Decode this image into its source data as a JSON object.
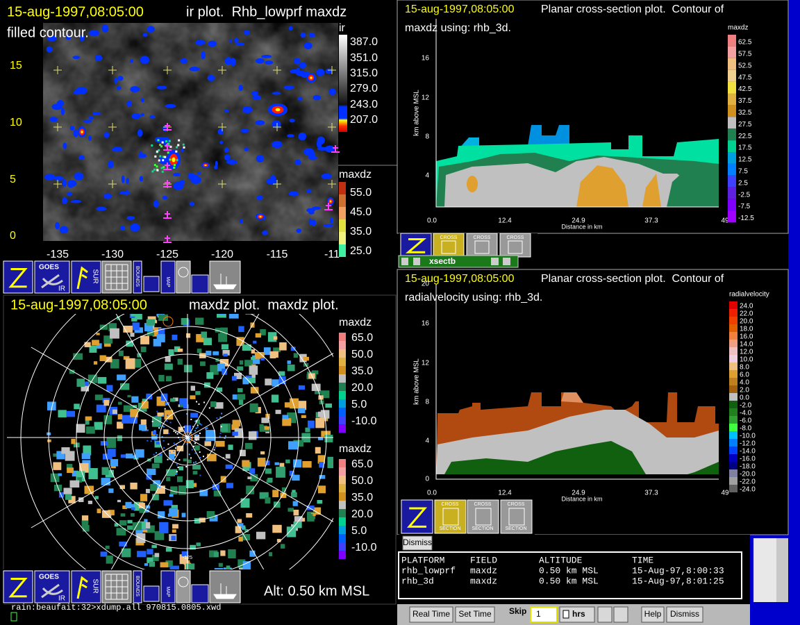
{
  "ir_panel": {
    "timestamp": "15-aug-1997,08:05:00",
    "title": "ir plot.  Rhb_lowprf maxdz",
    "subtitle": "filled contour.",
    "y_labels": [
      "15",
      "10",
      "5",
      "0"
    ],
    "x_labels": [
      "-135",
      "-130",
      "-125",
      "-120",
      "-115",
      "-11"
    ],
    "ir_scale": {
      "title": "ir",
      "labels": [
        "387.0",
        "351.0",
        "315.0",
        "279.0",
        "243.0",
        "207.0"
      ]
    },
    "maxdz_scale": {
      "title": "maxdz",
      "labels": [
        "55.0",
        "45.0",
        "35.0",
        "25.0"
      ]
    }
  },
  "ir_toolbar": {
    "goes": "GOES",
    "ir": "IR",
    "sur": "SUR",
    "bounds": "BOUNDS",
    "map": "MAP"
  },
  "ppi_panel": {
    "timestamp": "15-aug-1997,08:05:00",
    "title": "maxdz plot.  maxdz plot.",
    "range_label": "-125",
    "scale_top": {
      "title": "maxdz",
      "labels": [
        "65.0",
        "50.0",
        "35.0",
        "20.0",
        "5.0",
        "-10.0"
      ]
    },
    "scale_bottom": {
      "title": "maxdz",
      "labels": [
        "65.0",
        "50.0",
        "35.0",
        "20.0",
        "5.0",
        "-10.0"
      ]
    },
    "altitude": "Alt: 0.50 km MSL"
  },
  "ppi_toolbar": {
    "goes": "GOES",
    "ir": "IR",
    "sur": "SUR",
    "bounds": "BOUNDS",
    "map": "MAP"
  },
  "maxdz_section": {
    "timestamp": "15-aug-1997,08:05:00",
    "title": "Planar cross-section plot.  Contour of",
    "subtitle": "maxdz using: rhb_3d.",
    "y_axis_title": "km above MSL",
    "x_axis_title": "Distance in km",
    "y_labels": [
      "16",
      "12",
      "8",
      "4"
    ],
    "x_labels": [
      "0.0",
      "12.4",
      "24.9",
      "37.3",
      "49"
    ],
    "scale": {
      "title": "maxdz",
      "labels": [
        "62.5",
        "57.5",
        "52.5",
        "47.5",
        "42.5",
        "37.5",
        "32.5",
        "27.5",
        "22.5",
        "17.5",
        "12.5",
        "7.5",
        "2.5",
        "-2.5",
        "-7.5",
        "-12.5"
      ]
    },
    "tools": [
      "CROSS",
      "CROSS",
      "CROSS"
    ]
  },
  "xsect_window": {
    "title": "xsectb"
  },
  "radial_section": {
    "timestamp": "15-aug-1997,08:05:00",
    "title": "Planar cross-section plot.  Contour of",
    "subtitle": "radialvelocity using: rhb_3d.",
    "y_axis_title": "km above MSL",
    "x_axis_title": "Distance in km",
    "y_labels": [
      "20",
      "16",
      "12",
      "8",
      "4",
      "0"
    ],
    "x_labels": [
      "0.0",
      "12.4",
      "24.9",
      "37.3",
      "49"
    ],
    "scale": {
      "title": "radialvelocity",
      "labels": [
        "24.0",
        "22.0",
        "20.0",
        "18.0",
        "16.0",
        "14.0",
        "12.0",
        "10.0",
        "8.0",
        "6.0",
        "4.0",
        "2.0",
        "0.0",
        "-2.0",
        "-4.0",
        "-6.0",
        "-8.0",
        "-10.0",
        "-12.0",
        "-14.0",
        "-16.0",
        "-18.0",
        "-20.0",
        "-22.0",
        "-24.0"
      ]
    },
    "tools": [
      {
        "top": "CROSS",
        "bottom": "SECTION"
      },
      {
        "top": "CROSS",
        "bottom": "SECTION"
      },
      {
        "top": "CROSS",
        "bottom": "SECTION"
      }
    ]
  },
  "dismiss": "Dismiss",
  "info_table": {
    "headers": [
      "PLATFORM",
      "FIELD",
      "ALTITUDE",
      "TIME"
    ],
    "rows": [
      [
        "rhb_lowprf",
        "maxdz",
        "0.50 km MSL",
        "15-Aug-97,8:00:33"
      ],
      [
        "rhb_3d",
        "maxdz",
        "0.50 km MSL",
        "15-Aug-97,8:01:25"
      ]
    ]
  },
  "terminal": {
    "command": "rain:beaufait:32>xdump.all 970815.0805.xwd"
  },
  "control_bar": {
    "real_time": "Real Time",
    "set_time": "Set Time",
    "skip": "Skip",
    "skip_value": "1",
    "unit": "hrs",
    "help": "Help",
    "dismiss": "Dismiss"
  }
}
